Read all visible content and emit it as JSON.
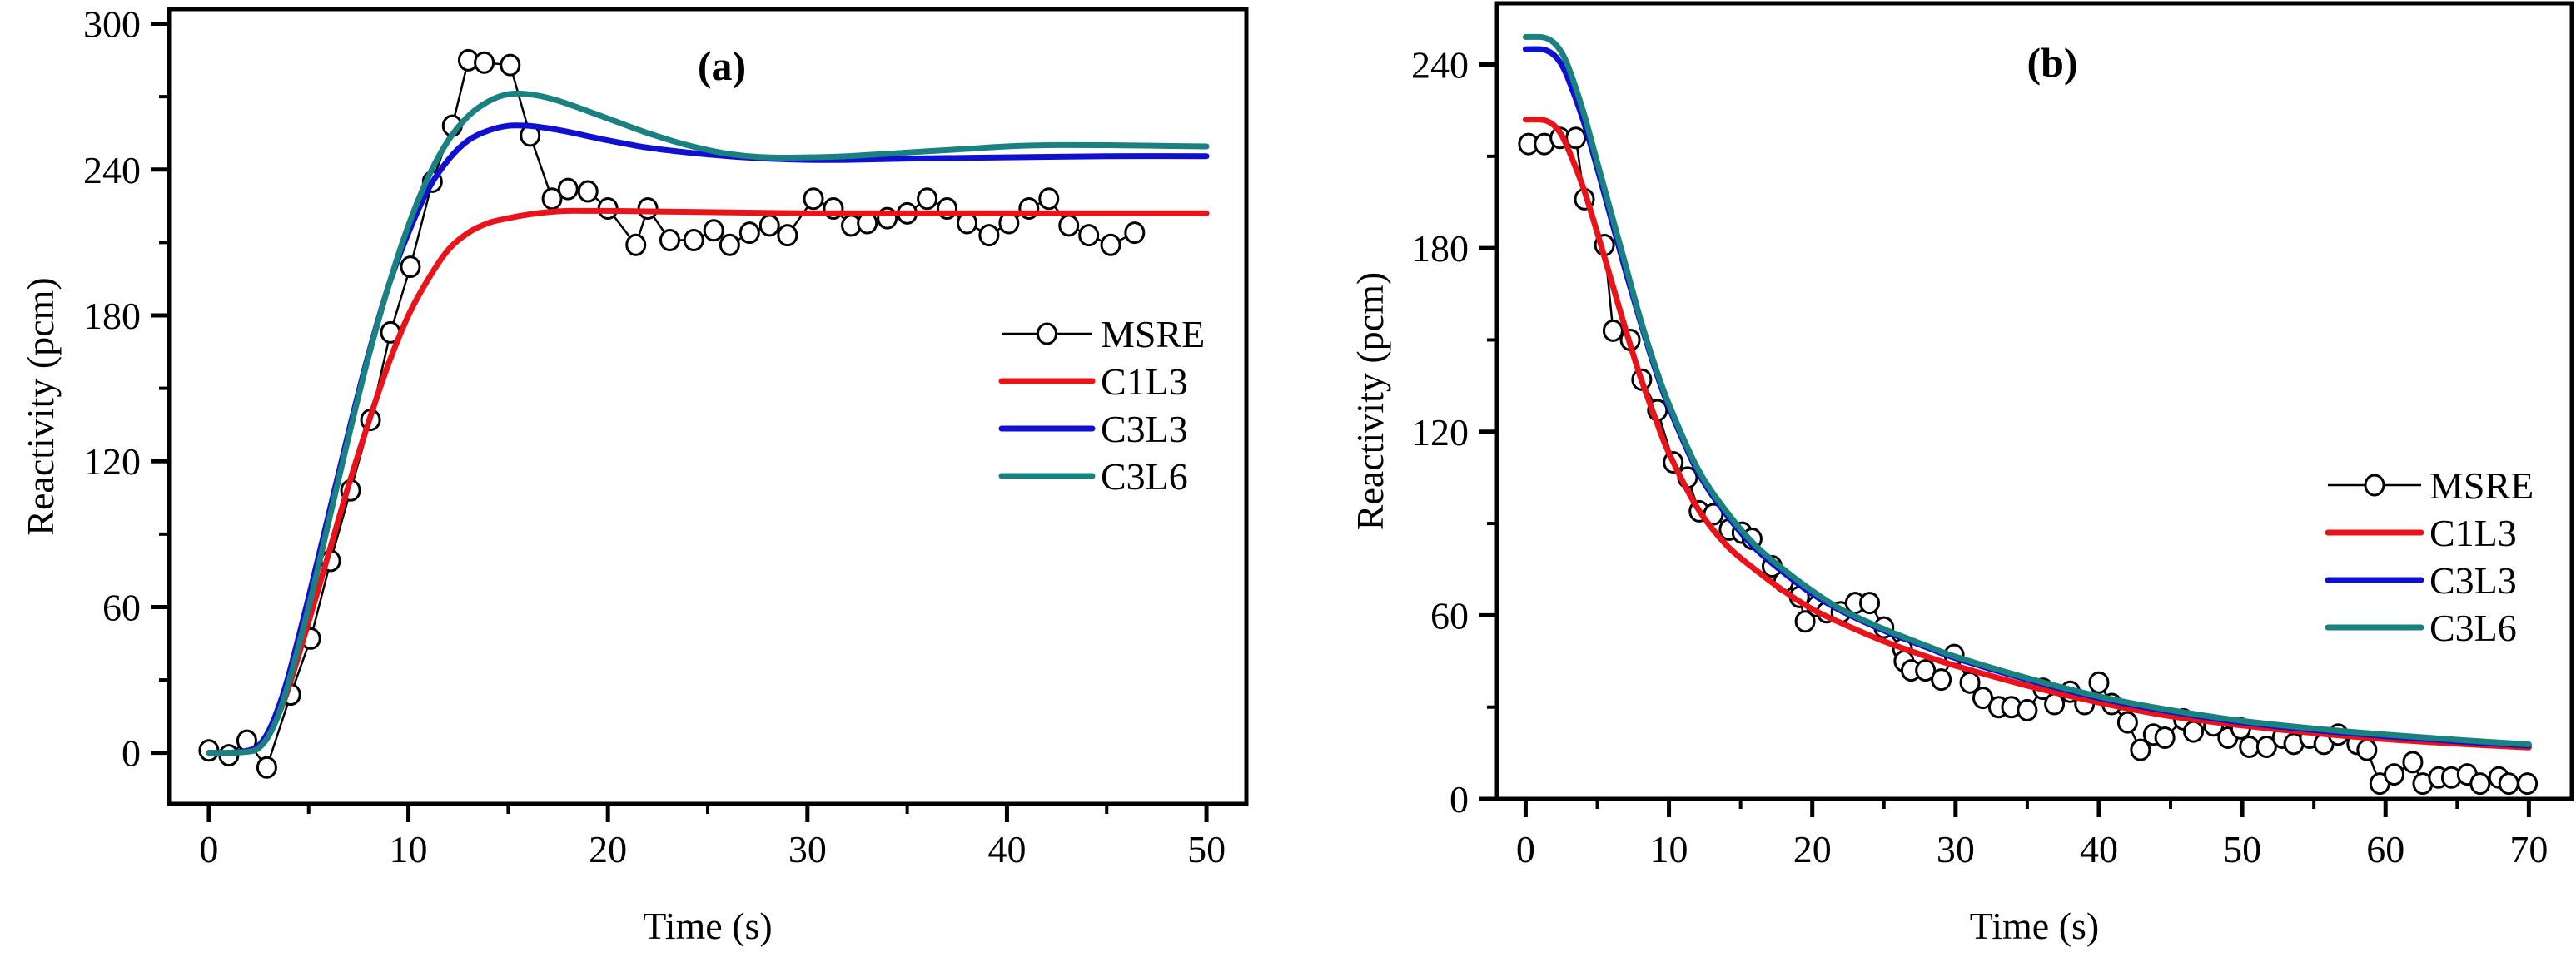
{
  "chart_data": [
    {
      "type": "line",
      "panel_label": "(a)",
      "xlabel": "Time (s)",
      "ylabel": "Reactivity (pcm)",
      "xlim": [
        -2,
        52
      ],
      "ylim": [
        -21,
        306
      ],
      "xticks": [
        0,
        10,
        20,
        30,
        40,
        50
      ],
      "xtick_labels": [
        "0",
        "10",
        "20",
        "30",
        "40",
        "50"
      ],
      "xminor": [
        5,
        15,
        25,
        35,
        45
      ],
      "yticks": [
        0,
        60,
        120,
        180,
        240,
        300
      ],
      "ytick_labels": [
        "0",
        "60",
        "120",
        "180",
        "240",
        "300"
      ],
      "yminor": [
        30,
        90,
        150,
        210,
        270
      ],
      "grid": false,
      "legend_position": "center-right",
      "series": [
        {
          "name": "MSRE",
          "color": "#000000",
          "marker": "open-circle",
          "x": [
            0.0,
            1.0,
            1.9,
            2.9,
            4.1,
            5.1,
            6.1,
            7.1,
            8.1,
            9.1,
            10.1,
            11.2,
            12.2,
            13.0,
            13.8,
            15.1,
            16.1,
            17.2,
            18.0,
            19.0,
            20.0,
            21.4,
            22.0,
            23.1,
            24.3,
            25.3,
            26.1,
            27.1,
            28.1,
            29.0,
            30.3,
            31.3,
            32.2,
            33.0,
            34.0,
            35.0,
            36.0,
            37.0,
            38.0,
            39.1,
            40.1,
            41.1,
            42.1,
            43.1,
            44.1,
            45.2,
            46.4
          ],
          "y": [
            1,
            -1,
            5,
            -6,
            24,
            47,
            79,
            108,
            137,
            173,
            200,
            235,
            258,
            285,
            284,
            283,
            254,
            228,
            232,
            231,
            224,
            209,
            224,
            211,
            211,
            215,
            209,
            214,
            217,
            213,
            228,
            224,
            217,
            218,
            220,
            222,
            228,
            224,
            218,
            213,
            218,
            224,
            228,
            217,
            213,
            209,
            214
          ]
        },
        {
          "name": "C1L3",
          "color": "#e8141a",
          "marker": "none",
          "x": [
            0,
            1,
            2,
            2.5,
            3,
            3.5,
            4,
            5,
            6,
            7,
            8,
            9,
            10,
            11,
            12,
            13,
            14,
            15,
            16,
            17,
            18,
            19,
            20,
            22,
            25,
            30,
            35,
            40,
            45,
            50
          ],
          "y": [
            0,
            0,
            1,
            3,
            8,
            16,
            27,
            54,
            82,
            110,
            136,
            160,
            180,
            195,
            207,
            214,
            218,
            220,
            221.5,
            222.5,
            223,
            223,
            223,
            222.8,
            222.5,
            222,
            222,
            222,
            222,
            222
          ]
        },
        {
          "name": "C3L3",
          "color": "#1010d0",
          "marker": "none",
          "x": [
            0,
            1,
            2,
            2.5,
            3,
            3.5,
            4,
            5,
            6,
            7,
            8,
            9,
            10,
            11,
            12,
            13,
            14,
            15,
            16,
            17,
            18,
            20,
            22,
            24,
            26,
            28,
            30,
            32,
            35,
            40,
            45,
            50
          ],
          "y": [
            0,
            0,
            1,
            3,
            9,
            19,
            32,
            64,
            98,
            132,
            164,
            192,
            214,
            232,
            244,
            252,
            256,
            258,
            258,
            257,
            255.5,
            252,
            249,
            247,
            245.5,
            244.5,
            244,
            244,
            244.5,
            245,
            245.5,
            245.5
          ]
        },
        {
          "name": "C3L6",
          "color": "#1a8080",
          "marker": "none",
          "x": [
            0,
            1,
            2,
            2.5,
            3,
            3.5,
            4,
            5,
            6,
            7,
            8,
            9,
            10,
            11,
            12,
            13,
            14,
            15,
            16,
            17,
            18,
            20,
            22,
            24,
            26,
            28,
            30,
            32,
            35,
            38,
            40,
            42,
            45,
            50
          ],
          "y": [
            0,
            0,
            0.5,
            2,
            7,
            16,
            29,
            60,
            95,
            130,
            163,
            192,
            217,
            237,
            252,
            262,
            268,
            271,
            271,
            269.5,
            267,
            261,
            255,
            250,
            246.5,
            245,
            245,
            245.5,
            247,
            248.5,
            249.5,
            250,
            250,
            249.5
          ]
        }
      ]
    },
    {
      "type": "line",
      "panel_label": "(b)",
      "xlabel": "Time (s)",
      "ylabel": "Reactivity (pcm)",
      "xlim": [
        -2,
        73
      ],
      "ylim": [
        0,
        260
      ],
      "xticks": [
        0,
        10,
        20,
        30,
        40,
        50,
        60,
        70
      ],
      "xtick_labels": [
        "0",
        "10",
        "20",
        "30",
        "40",
        "50",
        "60",
        "70"
      ],
      "xminor": [
        5,
        15,
        25,
        35,
        45,
        55,
        65
      ],
      "yticks": [
        0,
        60,
        120,
        180,
        240
      ],
      "ytick_labels": [
        "0",
        "60",
        "120",
        "180",
        "240"
      ],
      "yminor": [
        30,
        90,
        150,
        210
      ],
      "grid": false,
      "legend_position": "center-right",
      "series": [
        {
          "name": "MSRE",
          "color": "#000000",
          "marker": "open-circle",
          "x": [
            0.2,
            1.3,
            2.4,
            3.5,
            4.1,
            5.5,
            6.1,
            7.3,
            8.1,
            9.2,
            10.3,
            11.3,
            12.1,
            13.1,
            14.2,
            15.1,
            15.8,
            17.2,
            18.0,
            19.1,
            19.5,
            20.3,
            21.0,
            22.0,
            23.0,
            24.0,
            25.0,
            26.3,
            26.4,
            26.9,
            27.9,
            29.0,
            29.9,
            31.0,
            31.9,
            33.0,
            33.9,
            35.0,
            36.1,
            36.9,
            38.0,
            39.0,
            40.0,
            40.9,
            42.0,
            42.9,
            43.8,
            44.6,
            45.9,
            46.6,
            48.0,
            49.0,
            49.9,
            50.5,
            51.7,
            52.8,
            53.6,
            54.7,
            55.7,
            56.7,
            58.0,
            58.7,
            59.6,
            60.6,
            61.9,
            62.6,
            63.7,
            64.6,
            65.7,
            66.6,
            67.9,
            68.6,
            69.9
          ],
          "y": [
            214,
            214,
            216,
            216,
            196,
            181,
            153,
            150,
            137,
            127,
            110,
            105,
            94,
            93,
            88,
            87,
            85,
            76,
            71,
            66,
            58,
            63,
            61,
            61,
            64,
            64,
            56,
            49,
            45,
            42,
            42,
            39,
            47,
            38,
            33,
            30,
            30,
            29,
            36,
            31,
            35,
            31,
            38,
            31,
            25,
            16,
            21,
            20,
            26,
            22,
            24,
            20,
            23,
            17,
            17,
            20,
            18,
            20,
            18,
            21,
            18,
            16,
            5,
            8,
            12,
            5,
            7,
            7,
            8,
            5,
            7,
            5,
            5
          ]
        },
        {
          "name": "C1L3",
          "color": "#e8141a",
          "marker": "none",
          "x": [
            0,
            1,
            1.5,
            2,
            2.5,
            3,
            4,
            5,
            6,
            7,
            8,
            9,
            10,
            12,
            14,
            16,
            18,
            20,
            22,
            25,
            28,
            30,
            35,
            40,
            45,
            50,
            55,
            60,
            65,
            70
          ],
          "y": [
            222,
            222,
            221.5,
            220,
            217,
            212,
            200,
            185,
            169,
            153,
            138,
            125,
            113,
            95,
            83,
            75,
            68,
            62,
            57.5,
            51.5,
            46.5,
            43.5,
            37,
            31.5,
            27,
            24,
            21.5,
            19.5,
            18,
            16.8
          ]
        },
        {
          "name": "C3L3",
          "color": "#1010d0",
          "marker": "none",
          "x": [
            0,
            1,
            1.5,
            2,
            2.5,
            3,
            4,
            5,
            6,
            7,
            8,
            9,
            10,
            12,
            14,
            16,
            18,
            20,
            22,
            25,
            28,
            30,
            35,
            40,
            45,
            50,
            55,
            60,
            65,
            70
          ],
          "y": [
            245,
            245,
            244.5,
            243,
            240,
            235,
            222,
            206,
            189,
            172,
            156,
            141,
            128,
            107,
            93,
            82,
            74,
            67,
            61.5,
            55,
            49.5,
            46,
            39,
            33,
            28.5,
            25,
            22.5,
            20.5,
            18.8,
            17.4
          ]
        },
        {
          "name": "C3L6",
          "color": "#1a8080",
          "marker": "none",
          "x": [
            0,
            1,
            1.5,
            2,
            2.5,
            3,
            4,
            5,
            6,
            7,
            8,
            9,
            10,
            12,
            14,
            16,
            18,
            20,
            22,
            25,
            28,
            30,
            35,
            40,
            45,
            50,
            55,
            60,
            65,
            70
          ],
          "y": [
            249,
            249,
            248.5,
            247,
            244,
            239,
            225,
            208,
            191,
            174,
            157,
            142,
            129,
            108,
            94,
            83,
            75,
            68,
            62,
            55.5,
            50,
            46.5,
            39.5,
            33.5,
            29,
            25.5,
            23,
            21,
            19.3,
            17.8
          ]
        }
      ]
    }
  ]
}
